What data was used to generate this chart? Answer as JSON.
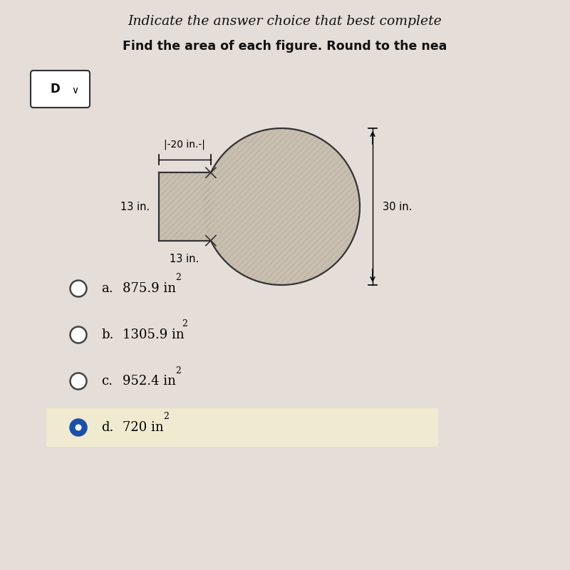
{
  "title_line1": "Indicate the answer choice that best complete",
  "title_line2": "Find the area of each figure. Round to the nea",
  "dropdown_label": "D ∨",
  "dim_top": "|-20 in.-|",
  "dim_left": "13 in.",
  "dim_bottom": "13 in.",
  "dim_right": "30 in.",
  "choices": [
    {
      "label": "a.",
      "text": "875.9 in",
      "sup": "2",
      "selected": false
    },
    {
      "label": "b.",
      "text": "1305.9 in",
      "sup": "2",
      "selected": false
    },
    {
      "label": "c.",
      "text": "952.4 in",
      "sup": "2",
      "selected": false
    },
    {
      "label": "d.",
      "text": "720 in",
      "sup": "2",
      "selected": true
    }
  ],
  "bg_color": "#e8e0dc",
  "figure_fill": "#c8bfb0",
  "figure_stroke": "#333333",
  "selected_bg": "#f0ead0",
  "selected_dot_color": "#1a4faa",
  "unselected_dot_color": "#ffffff",
  "dot_stroke": "#444444"
}
